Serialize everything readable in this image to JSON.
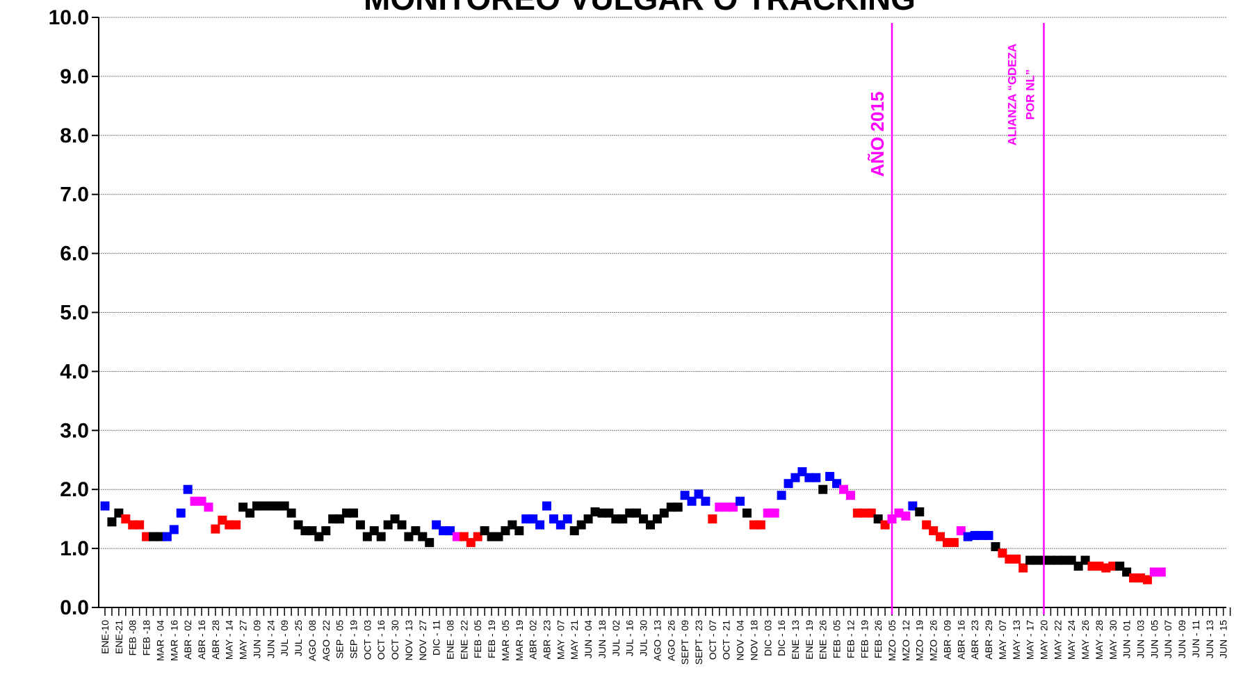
{
  "chart_data": {
    "type": "scatter",
    "title": "MONITOREO VULGAR O TRACKING",
    "categories": [
      "ENE-10",
      null,
      "ENE-21",
      null,
      "FEB -08",
      null,
      "FEB -18",
      null,
      "MAR - 04",
      null,
      "MAR - 16",
      null,
      "ABR - 02",
      null,
      "ABR - 16",
      null,
      "ABR - 28",
      null,
      "MAY - 14",
      null,
      "MAY - 27",
      null,
      "JUN - 09",
      null,
      "JUN - 24",
      null,
      "JUL - 09",
      null,
      "JUL - 25",
      null,
      "AGO - 08",
      null,
      "AGO - 22",
      null,
      "SEP - 05",
      null,
      "SEP - 19",
      null,
      "OCT - 03",
      null,
      "OCT - 16",
      null,
      "OCT - 30",
      null,
      "NOV - 13",
      null,
      "NOV - 27",
      null,
      "DIC - 11",
      null,
      "ENE - 08",
      null,
      "ENE - 22",
      null,
      "FEB - 05",
      null,
      "FEB - 19",
      null,
      "MAR - 05",
      null,
      "MAR - 19",
      null,
      "ABR - 02",
      null,
      "ABR - 23",
      null,
      "MAY - 07",
      null,
      "MAY - 21",
      null,
      "JUN - 04",
      null,
      "JUN - 18",
      null,
      "JUL - 02",
      null,
      "JUL - 16",
      null,
      "JUL - 30",
      null,
      "AGO - 13",
      null,
      "AGO - 26",
      null,
      "SEPT - 09",
      null,
      "SEPT - 23",
      null,
      "OCT - 07",
      null,
      "OCT - 21",
      null,
      "NOV - 04",
      null,
      "NOV - 18",
      null,
      "DIC - 03",
      null,
      "DIC - 16",
      null,
      "ENE - 13",
      null,
      "ENE - 19",
      null,
      "ENE - 26",
      null,
      "FEB - 05",
      null,
      "FEB - 12",
      null,
      "FEB - 19",
      null,
      "FEB - 26",
      null,
      "MZO - 05",
      null,
      "MZO - 12",
      null,
      "MZO - 19",
      null,
      "MZO - 26",
      null,
      "ABR - 09",
      null,
      "ABR - 16",
      null,
      "ABR - 23",
      null,
      "ABR - 29",
      null,
      "MAY - 07",
      null,
      "MAY - 13",
      null,
      "MAY - 17",
      null,
      "MAY - 20",
      null,
      "MAY - 22",
      null,
      "MAY - 24",
      null,
      "MAY - 26",
      null,
      "MAY - 28",
      null,
      "MAY - 30",
      null,
      "JUN - 01",
      null,
      "JUN - 03",
      null,
      "JUN - 05",
      null,
      "JUN - 07",
      null,
      "JUN - 09",
      null,
      "JUN - 11",
      null,
      "JUN - 13",
      null,
      "JUN - 15",
      null
    ],
    "values": [
      1.72,
      1.45,
      1.6,
      1.5,
      1.4,
      1.4,
      1.2,
      1.2,
      1.2,
      1.2,
      1.32,
      1.6,
      2.0,
      1.8,
      1.8,
      1.7,
      1.33,
      1.48,
      1.4,
      1.4,
      1.7,
      1.6,
      1.72,
      1.72,
      1.72,
      1.72,
      1.72,
      1.6,
      1.4,
      1.3,
      1.3,
      1.2,
      1.3,
      1.5,
      1.5,
      1.6,
      1.6,
      1.4,
      1.2,
      1.3,
      1.2,
      1.4,
      1.5,
      1.4,
      1.2,
      1.3,
      1.2,
      1.1,
      1.4,
      1.3,
      1.3,
      1.2,
      1.2,
      1.1,
      1.2,
      1.3,
      1.2,
      1.2,
      1.3,
      1.4,
      1.3,
      1.5,
      1.5,
      1.4,
      1.72,
      1.5,
      1.4,
      1.5,
      1.3,
      1.4,
      1.5,
      1.62,
      1.6,
      1.6,
      1.5,
      1.5,
      1.6,
      1.6,
      1.5,
      1.4,
      1.5,
      1.6,
      1.7,
      1.7,
      1.9,
      1.8,
      1.92,
      1.8,
      1.5,
      1.7,
      1.7,
      1.7,
      1.8,
      1.6,
      1.4,
      1.4,
      1.6,
      1.6,
      1.9,
      2.1,
      2.2,
      2.3,
      2.2,
      2.2,
      2.0,
      2.22,
      2.1,
      2.0,
      1.9,
      1.6,
      1.6,
      1.6,
      1.5,
      1.4,
      1.5,
      1.6,
      1.55,
      1.72,
      1.62,
      1.4,
      1.3,
      1.2,
      1.1,
      1.1,
      1.3,
      1.2,
      1.22,
      1.22,
      1.22,
      1.03,
      0.92,
      0.82,
      0.82,
      0.67,
      0.8,
      0.8,
      0.8,
      0.8,
      0.8,
      0.8,
      0.8,
      0.7,
      0.8,
      0.7,
      0.7,
      0.67,
      0.7,
      0.7,
      0.6,
      0.5,
      0.5,
      0.47,
      0.6,
      0.6,
      null,
      null,
      null,
      null,
      null,
      null,
      null,
      null,
      null,
      null
    ],
    "colors": [
      "blue",
      "black",
      "black",
      "red",
      "red",
      "red",
      "red",
      "black",
      "black",
      "blue",
      "blue",
      "blue",
      "blue",
      "magenta",
      "magenta",
      "magenta",
      "red",
      "red",
      "red",
      "red",
      "black",
      "black",
      "black",
      "black",
      "black",
      "black",
      "black",
      "black",
      "black",
      "black",
      "black",
      "black",
      "black",
      "black",
      "black",
      "black",
      "black",
      "black",
      "black",
      "black",
      "black",
      "black",
      "black",
      "black",
      "black",
      "black",
      "black",
      "black",
      "blue",
      "blue",
      "blue",
      "magenta",
      "red",
      "red",
      "red",
      "black",
      "black",
      "black",
      "black",
      "black",
      "black",
      "blue",
      "blue",
      "blue",
      "blue",
      "blue",
      "blue",
      "blue",
      "black",
      "black",
      "black",
      "black",
      "black",
      "black",
      "black",
      "black",
      "black",
      "black",
      "black",
      "black",
      "black",
      "black",
      "black",
      "black",
      "blue",
      "blue",
      "blue",
      "blue",
      "red",
      "magenta",
      "magenta",
      "magenta",
      "blue",
      "black",
      "red",
      "red",
      "magenta",
      "magenta",
      "blue",
      "blue",
      "blue",
      "blue",
      "blue",
      "blue",
      "black",
      "blue",
      "blue",
      "magenta",
      "magenta",
      "red",
      "red",
      "red",
      "black",
      "red",
      "magenta",
      "magenta",
      "magenta",
      "blue",
      "black",
      "red",
      "red",
      "red",
      "red",
      "red",
      "magenta",
      "blue",
      "blue",
      "blue",
      "blue",
      "black",
      "red",
      "red",
      "red",
      "red",
      "black",
      "black",
      "black",
      "black",
      "black",
      "black",
      "black",
      "black",
      "black",
      "red",
      "red",
      "red",
      "red",
      "black",
      "black",
      "red",
      "red",
      "red",
      "magenta",
      "magenta",
      null,
      null,
      null,
      null,
      null,
      null,
      null,
      null,
      null,
      null
    ],
    "ylim": [
      0,
      10
    ],
    "yticks": [
      {
        "value": 0,
        "label": "0.0"
      },
      {
        "value": 1,
        "label": "1.0"
      },
      {
        "value": 2,
        "label": "2.0"
      },
      {
        "value": 3,
        "label": "3.0"
      },
      {
        "value": 4,
        "label": "4.0"
      },
      {
        "value": 5,
        "label": "5.0"
      },
      {
        "value": 6,
        "label": "6.0"
      },
      {
        "value": 7,
        "label": "7.0"
      },
      {
        "value": 8,
        "label": "8.0"
      },
      {
        "value": 9,
        "label": "9.0"
      },
      {
        "value": 10,
        "label": "10.0"
      }
    ],
    "grid": true,
    "annotations": [
      {
        "category": "MZO - 05",
        "lines": [
          "AÑO 2015"
        ]
      },
      {
        "category": "MAY - 20",
        "lines": [
          "ALIANZA “GDEZA",
          "POR NL”"
        ]
      }
    ],
    "annotation_color": "#ff00ff"
  }
}
